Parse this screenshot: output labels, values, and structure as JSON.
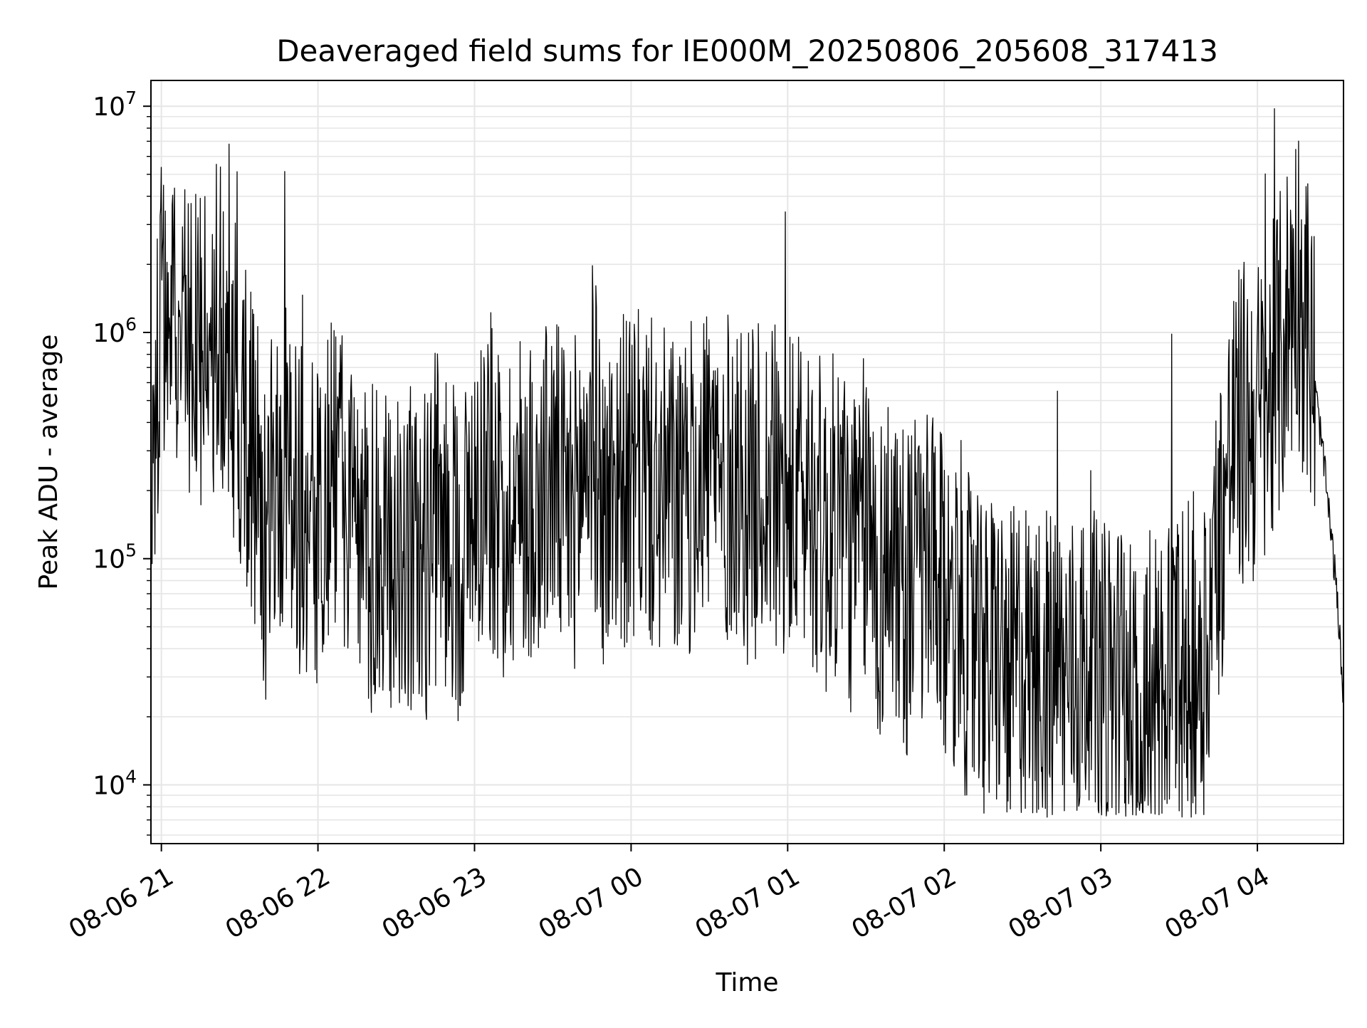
{
  "chart_data": {
    "type": "line",
    "title": "Deaveraged field sums for IE000M_20250806_205608_317413",
    "xlabel": "Time",
    "ylabel": "Peak ADU - average",
    "yscale": "log",
    "xlim": [
      "08-06 20:56",
      "08-07 04:33"
    ],
    "ylim": [
      5500,
      13000000
    ],
    "grid": true,
    "line_color": "#000000",
    "x_ticks": [
      "08-06 21",
      "08-06 22",
      "08-06 23",
      "08-07 00",
      "08-07 01",
      "08-07 02",
      "08-07 03",
      "08-07 04"
    ],
    "y_ticks": [
      {
        "base": "10",
        "exp": "4",
        "value": 10000
      },
      {
        "base": "10",
        "exp": "5",
        "value": 100000
      },
      {
        "base": "10",
        "exp": "6",
        "value": 1000000
      },
      {
        "base": "10",
        "exp": "7",
        "value": 10000000
      }
    ],
    "series": [
      {
        "x": [
          "08-06 20:56",
          "08-06 21:00",
          "08-06 21:05",
          "08-06 21:10",
          "08-06 21:15",
          "08-06 21:20",
          "08-06 21:25",
          "08-06 21:30",
          "08-06 21:35",
          "08-06 21:40",
          "08-06 21:45",
          "08-06 21:50",
          "08-06 21:55",
          "08-06 22:00",
          "08-06 22:05",
          "08-06 22:10",
          "08-06 22:15",
          "08-06 22:20",
          "08-06 22:25",
          "08-06 22:30",
          "08-06 22:35",
          "08-06 22:40",
          "08-06 22:45",
          "08-06 22:50",
          "08-06 22:55",
          "08-06 23:00",
          "08-06 23:05",
          "08-06 23:10",
          "08-06 23:15",
          "08-06 23:20",
          "08-06 23:25",
          "08-06 23:30",
          "08-06 23:35",
          "08-06 23:40",
          "08-06 23:45",
          "08-06 23:50",
          "08-06 23:55",
          "08-07 00:00",
          "08-07 00:05",
          "08-07 00:10",
          "08-07 00:15",
          "08-07 00:20",
          "08-07 00:25",
          "08-07 00:30",
          "08-07 00:35",
          "08-07 00:40",
          "08-07 00:45",
          "08-07 00:50",
          "08-07 00:55",
          "08-07 01:00",
          "08-07 01:05",
          "08-07 01:10",
          "08-07 01:15",
          "08-07 01:20",
          "08-07 01:25",
          "08-07 01:30",
          "08-07 01:35",
          "08-07 01:40",
          "08-07 01:45",
          "08-07 01:50",
          "08-07 01:55",
          "08-07 02:00",
          "08-07 02:05",
          "08-07 02:10",
          "08-07 02:15",
          "08-07 02:20",
          "08-07 02:25",
          "08-07 02:30",
          "08-07 02:35",
          "08-07 02:40",
          "08-07 02:45",
          "08-07 02:50",
          "08-07 02:55",
          "08-07 03:00",
          "08-07 03:05",
          "08-07 03:10",
          "08-07 03:15",
          "08-07 03:20",
          "08-07 03:25",
          "08-07 03:30",
          "08-07 03:35",
          "08-07 03:40",
          "08-07 03:45",
          "08-07 03:50",
          "08-07 03:55",
          "08-07 04:00",
          "08-07 04:05",
          "08-07 04:10",
          "08-07 04:15",
          "08-07 04:20",
          "08-07 04:25",
          "08-07 04:30",
          "08-07 04:33"
        ],
        "values": [
          150000,
          1000000,
          1600000,
          900000,
          700000,
          1100000,
          700000,
          500000,
          300000,
          120000,
          250000,
          200000,
          150000,
          120000,
          250000,
          180000,
          100000,
          110000,
          90000,
          120000,
          110000,
          90000,
          150000,
          130000,
          100000,
          200000,
          250000,
          150000,
          180000,
          200000,
          180000,
          250000,
          150000,
          200000,
          400000,
          150000,
          250000,
          200000,
          250000,
          180000,
          200000,
          150000,
          250000,
          300000,
          200000,
          250000,
          180000,
          220000,
          200000,
          150000,
          200000,
          180000,
          120000,
          180000,
          100000,
          150000,
          80000,
          120000,
          70000,
          90000,
          80000,
          60000,
          70000,
          40000,
          30000,
          40000,
          30000,
          40000,
          30000,
          35000,
          30000,
          30000,
          35000,
          25000,
          30000,
          25000,
          20000,
          25000,
          30000,
          30000,
          35000,
          40000,
          120000,
          300000,
          400000,
          400000,
          500000,
          900000,
          1900000,
          900000,
          300000,
          80000,
          25000
        ]
      }
    ]
  }
}
